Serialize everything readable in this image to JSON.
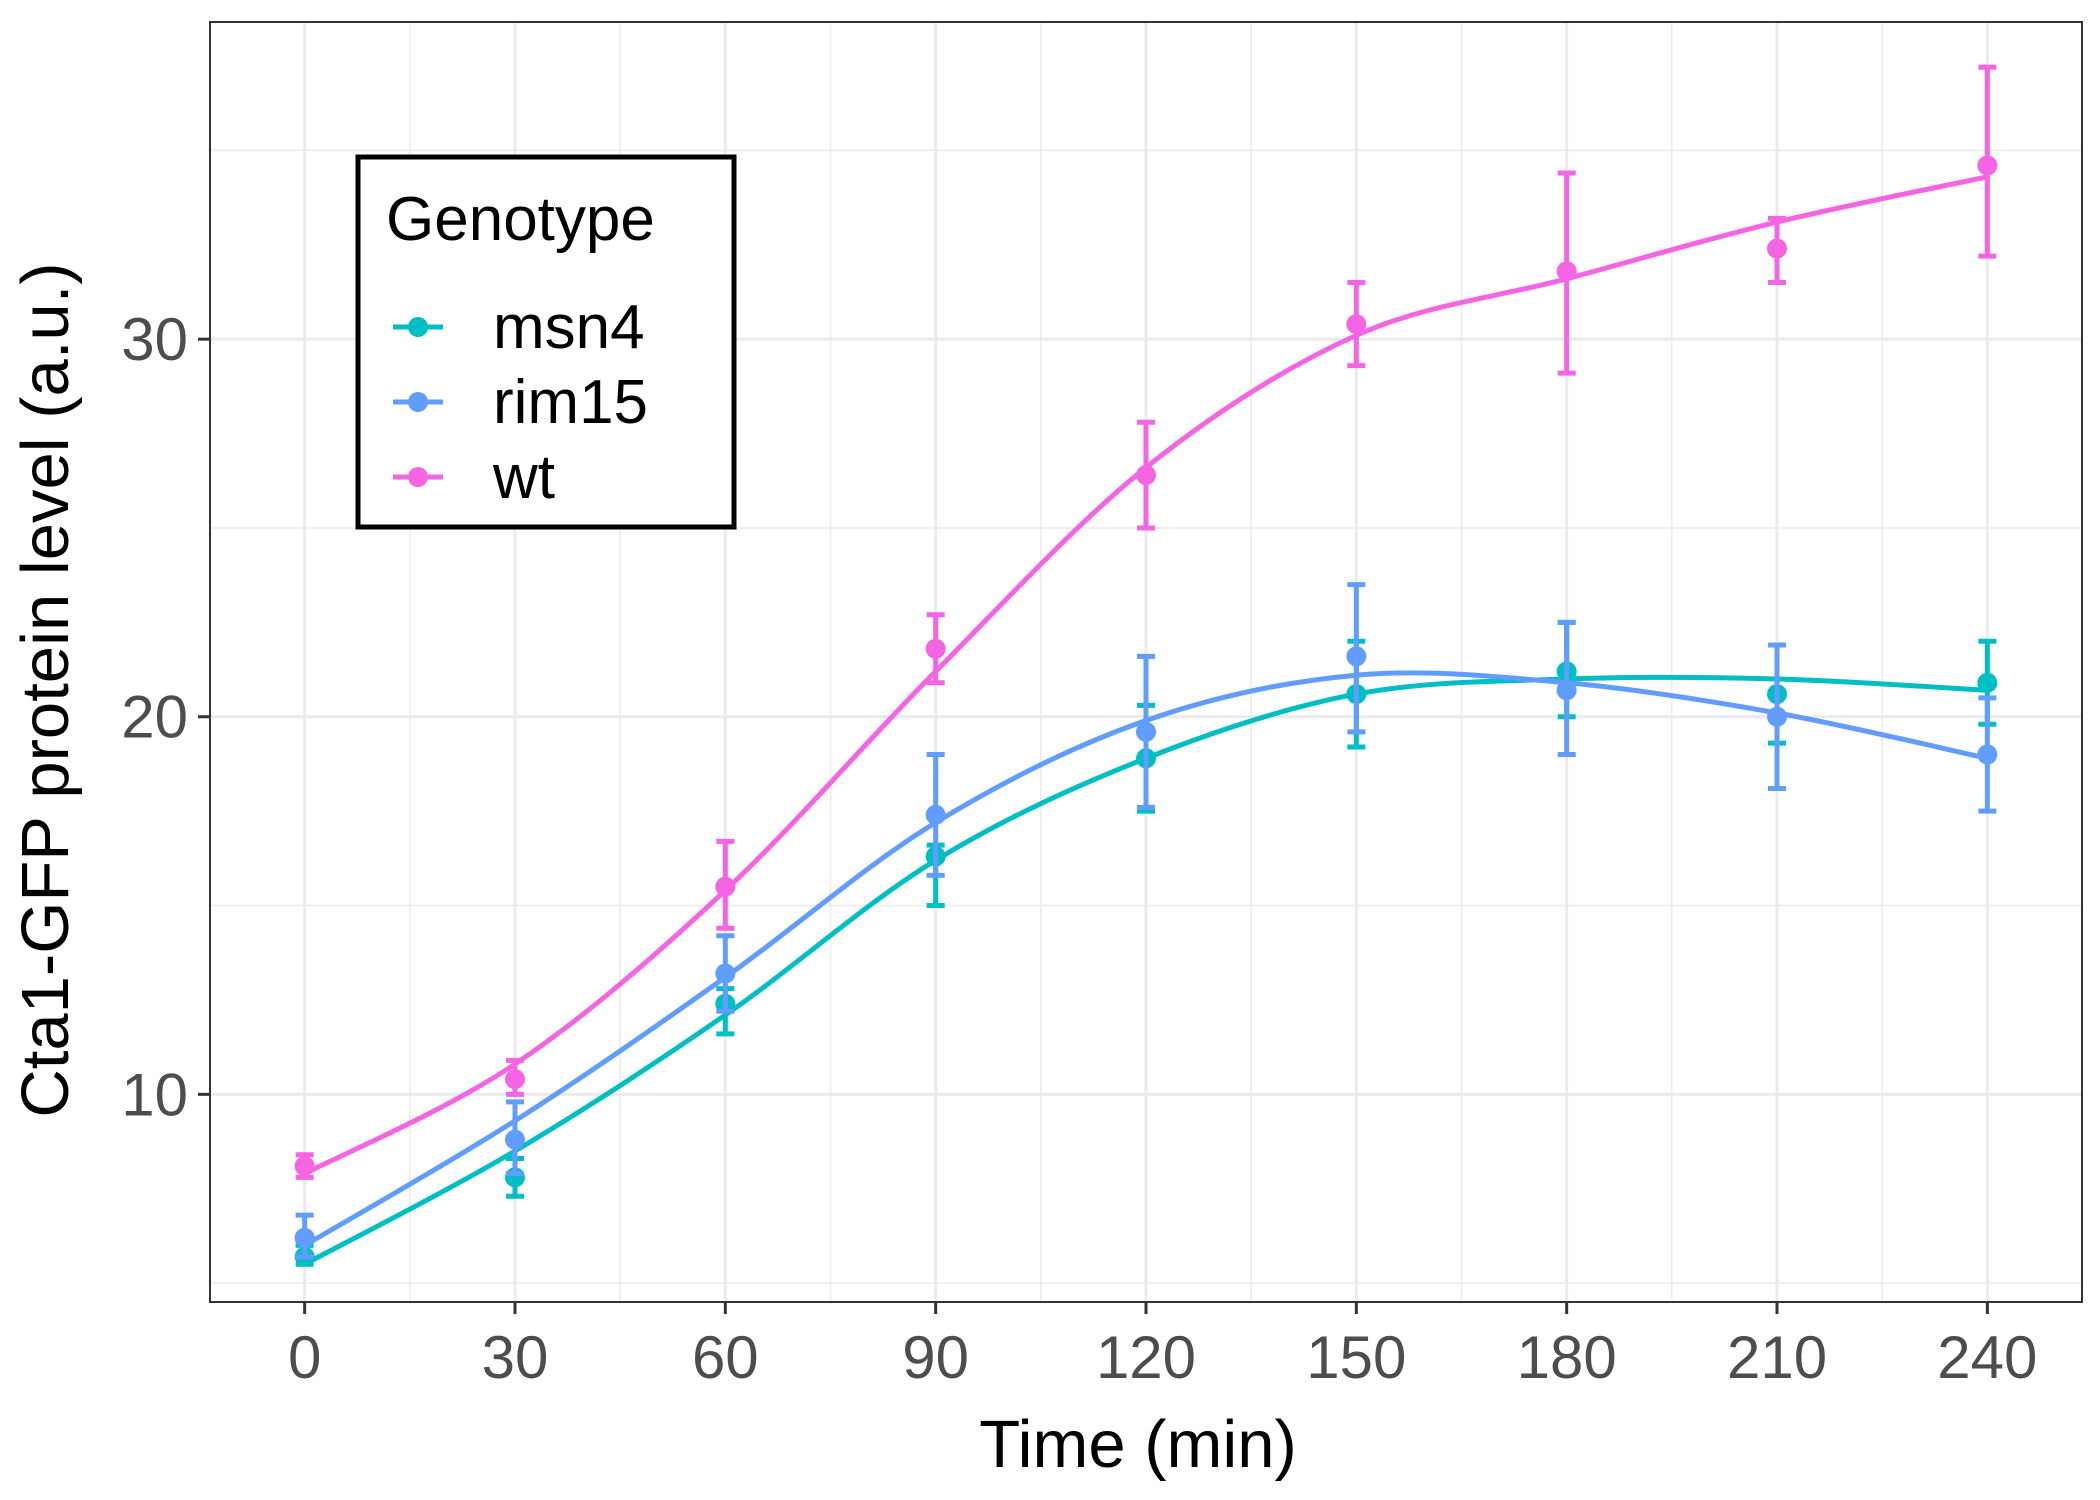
{
  "chart_data": {
    "type": "line",
    "xlabel": "Time (min)",
    "ylabel": "Cta1-GFP protein level (a.u.)",
    "x": [
      0,
      30,
      60,
      90,
      120,
      150,
      180,
      210,
      240
    ],
    "x_ticks": [
      0,
      30,
      60,
      90,
      120,
      150,
      180,
      210,
      240
    ],
    "y_ticks": [
      10,
      20,
      30
    ],
    "xlim": [
      -13.5,
      253.5
    ],
    "ylim": [
      4.5,
      38.4
    ],
    "grid": true,
    "legend": {
      "title": "Genotype",
      "placement": "top-left, inside plot"
    },
    "series": [
      {
        "name": "msn4",
        "color": "#00BFC4",
        "points": [
          5.7,
          7.8,
          12.4,
          16.3,
          18.9,
          20.6,
          21.2,
          20.6,
          20.9
        ],
        "err_low": [
          5.5,
          7.3,
          11.6,
          15.0,
          17.5,
          19.2,
          20.0,
          19.3,
          19.8
        ],
        "err_high": [
          6.0,
          8.3,
          12.8,
          16.6,
          20.3,
          22.0,
          22.5,
          21.9,
          22.0
        ],
        "smooth": [
          5.5,
          8.5,
          12.1,
          16.2,
          18.9,
          20.6,
          21.0,
          21.0,
          20.7
        ]
      },
      {
        "name": "rim15",
        "color": "#619CFF",
        "points": [
          6.2,
          8.8,
          13.2,
          17.4,
          19.6,
          21.6,
          20.7,
          20.0,
          19.0
        ],
        "err_low": [
          5.7,
          7.9,
          12.2,
          15.8,
          17.6,
          19.6,
          19.0,
          18.1,
          17.5
        ],
        "err_high": [
          6.8,
          9.8,
          14.2,
          19.0,
          21.6,
          23.5,
          22.5,
          21.9,
          20.5
        ],
        "smooth": [
          6.0,
          9.3,
          13.1,
          17.2,
          19.9,
          21.1,
          20.9,
          20.1,
          18.9
        ]
      },
      {
        "name": "wt",
        "color": "#F564E3",
        "points": [
          8.1,
          10.4,
          15.5,
          21.8,
          26.4,
          30.4,
          31.8,
          32.4,
          34.6
        ],
        "err_low": [
          7.8,
          10.0,
          14.4,
          20.9,
          25.0,
          29.3,
          29.1,
          31.5,
          32.2
        ],
        "err_high": [
          8.4,
          10.9,
          16.7,
          22.7,
          27.8,
          31.5,
          34.4,
          33.2,
          37.2
        ],
        "smooth": [
          7.9,
          10.8,
          15.4,
          21.2,
          26.6,
          30.1,
          31.6,
          33.1,
          34.3
        ]
      }
    ]
  }
}
